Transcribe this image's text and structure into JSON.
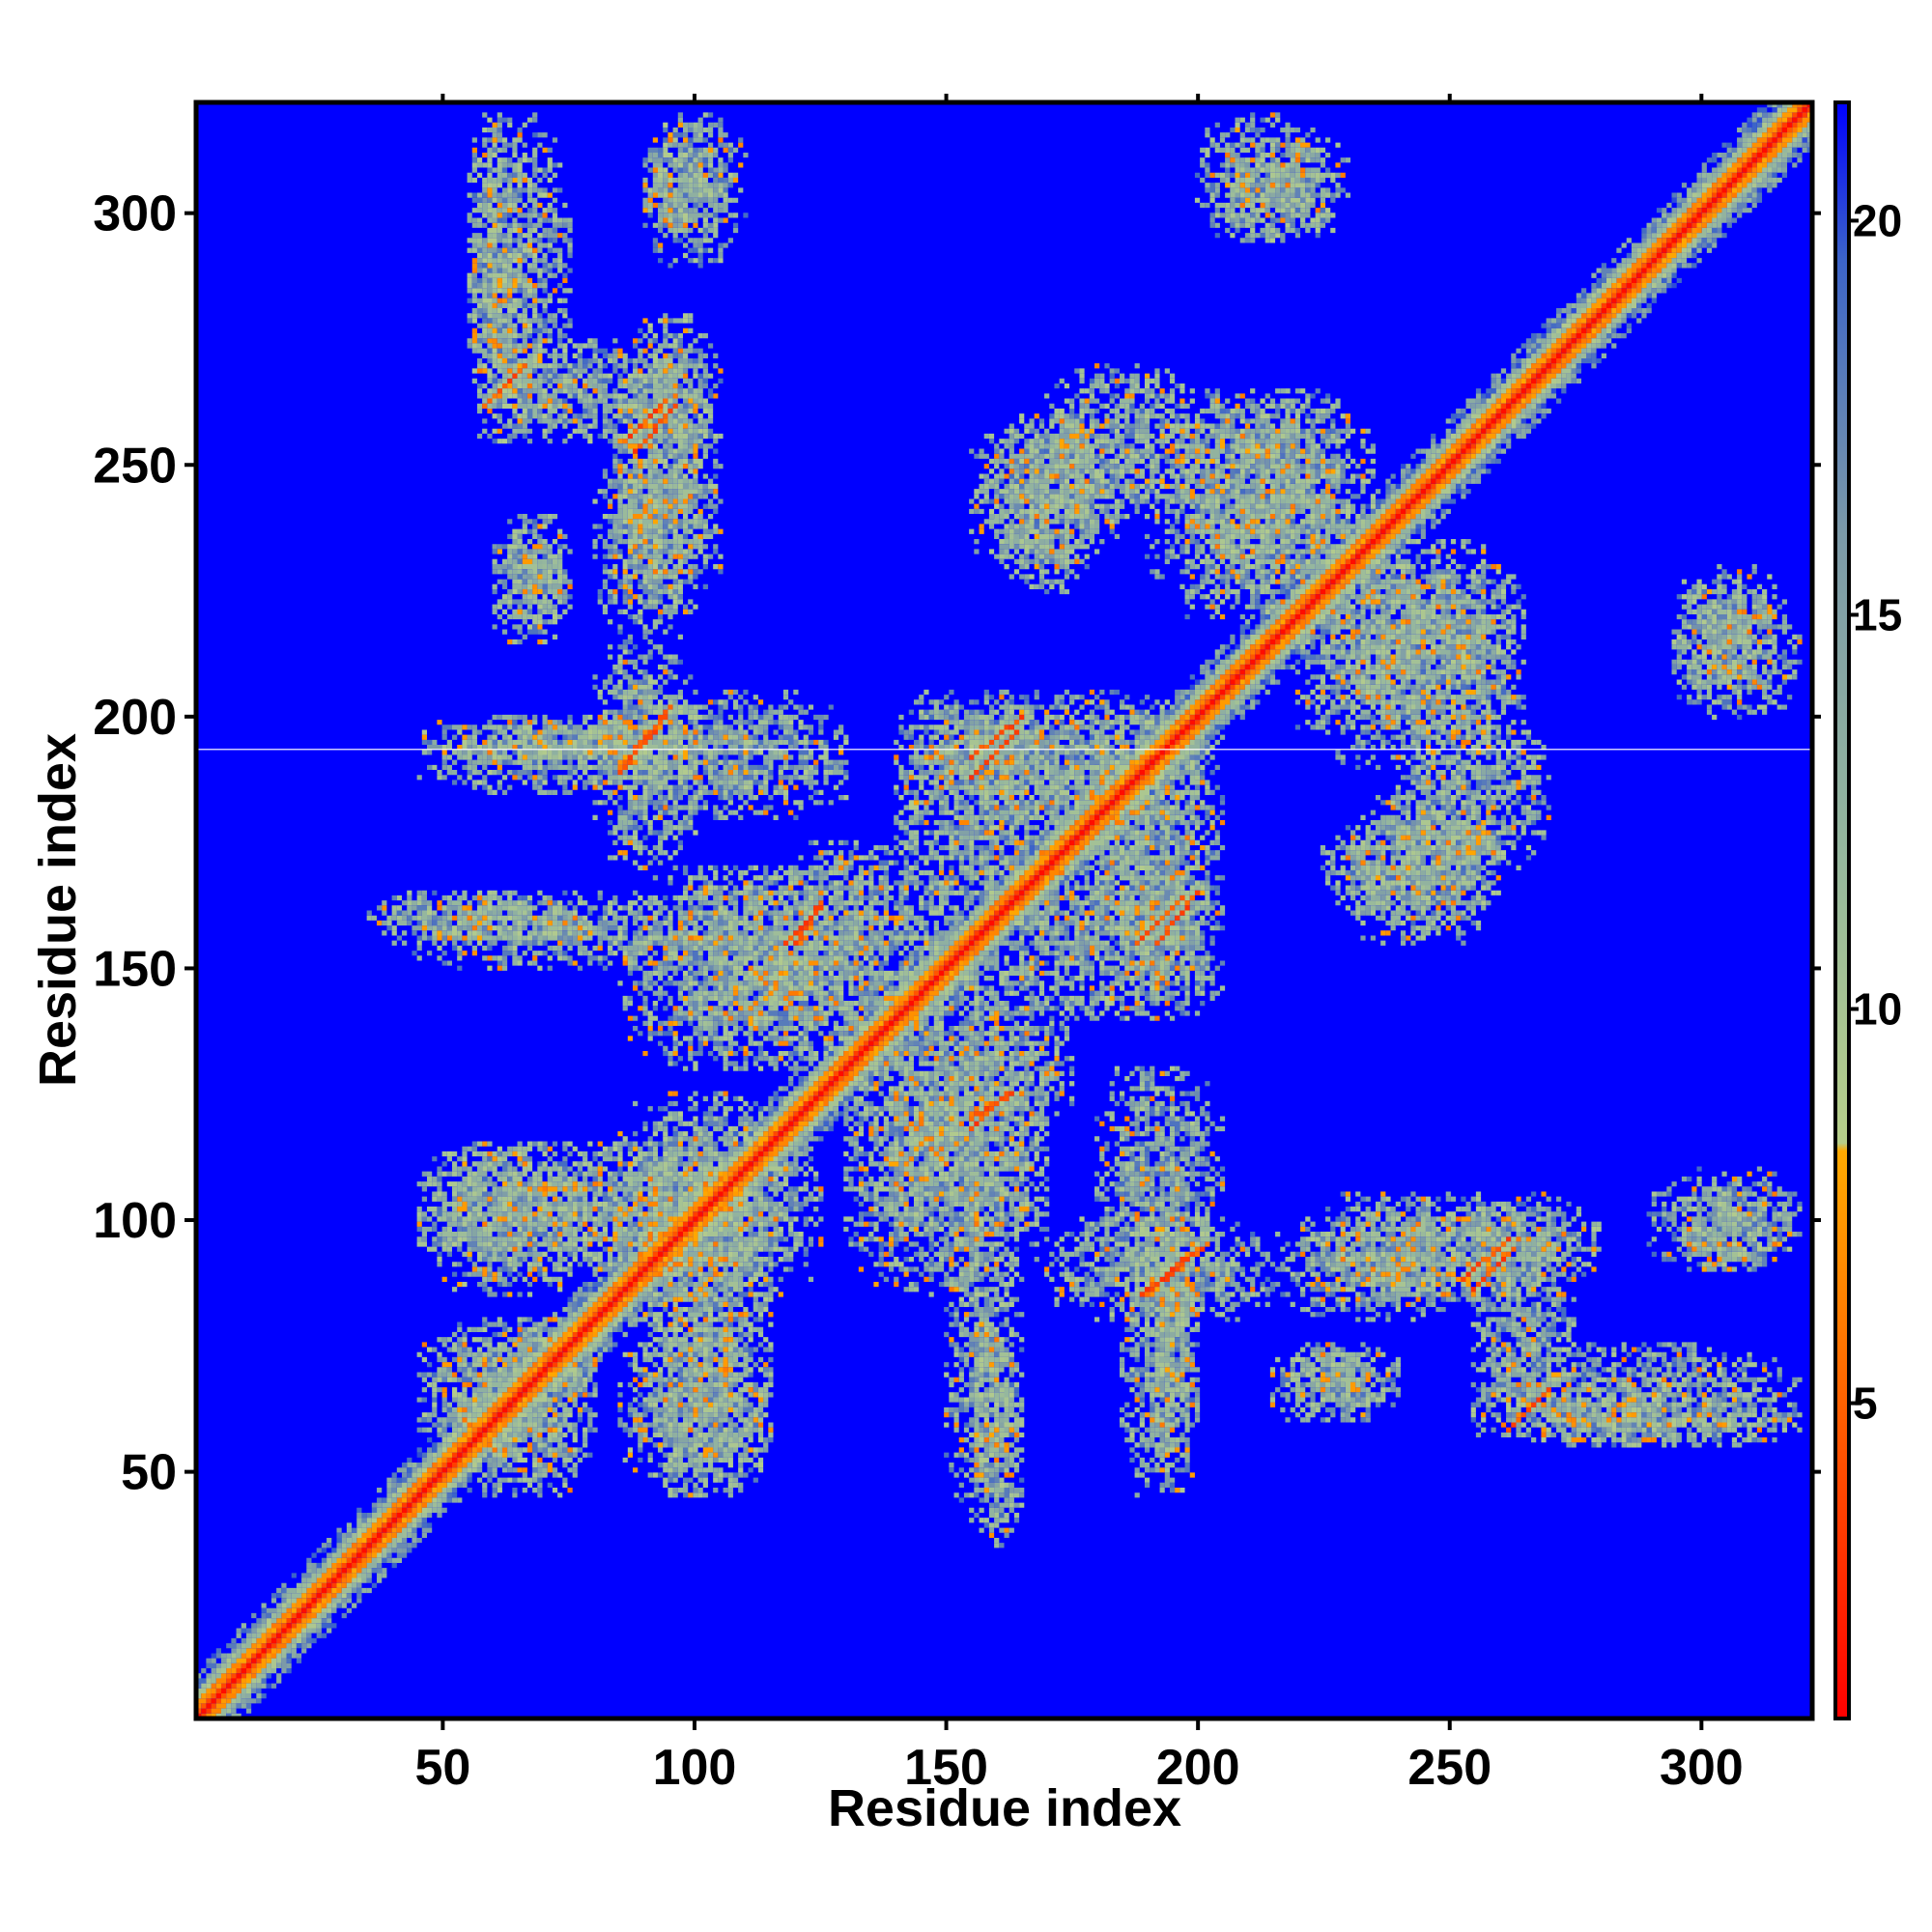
{
  "chart_data": {
    "type": "heatmap",
    "title": "",
    "xlabel": "Residue index",
    "ylabel": "Residue index",
    "xlim": [
      1,
      322
    ],
    "ylim": [
      1,
      322
    ],
    "x_ticks": [
      50,
      100,
      150,
      200,
      250,
      300
    ],
    "y_ticks": [
      50,
      100,
      150,
      200,
      250,
      300
    ],
    "colorbar": {
      "ticks": [
        5,
        10,
        15,
        20
      ],
      "range": [
        1,
        21.5
      ],
      "stops": [
        {
          "value": 1.0,
          "color": "#ff0000"
        },
        {
          "value": 6.0,
          "color": "#ff7a00"
        },
        {
          "value": 8.2,
          "color": "#ffaa00"
        },
        {
          "value": 8.3,
          "color": "#b7cf8a"
        },
        {
          "value": 12.0,
          "color": "#95b79e"
        },
        {
          "value": 16.0,
          "color": "#7c9aa8"
        },
        {
          "value": 19.5,
          "color": "#3c64c8"
        },
        {
          "value": 21.5,
          "color": "#0000ff"
        }
      ]
    },
    "background_value": 21.5,
    "contact_regions": [
      {
        "x": [
          1,
          322
        ],
        "y": [
          1,
          322
        ],
        "kind": "diagonal"
      },
      {
        "x": [
          55,
          65
        ],
        "y": [
          255,
          320
        ]
      },
      {
        "x": [
          90,
          110
        ],
        "y": [
          290,
          320
        ]
      },
      {
        "x": [
          205,
          230
        ],
        "y": [
          295,
          315
        ]
      },
      {
        "x": [
          60,
          95
        ],
        "y": [
          255,
          275
        ]
      },
      {
        "x": [
          85,
          105
        ],
        "y": [
          220,
          270
        ]
      },
      {
        "x": [
          60,
          75
        ],
        "y": [
          215,
          235
        ]
      },
      {
        "x": [
          155,
          185
        ],
        "y": [
          230,
          260
        ]
      },
      {
        "x": [
          190,
          230
        ],
        "y": [
          220,
          265
        ]
      },
      {
        "x": [
          225,
          265
        ],
        "y": [
          195,
          235
        ]
      },
      {
        "x": [
          240,
          270
        ],
        "y": [
          170,
          200
        ]
      },
      {
        "x": [
          295,
          320
        ],
        "y": [
          200,
          225
        ]
      },
      {
        "x": [
          45,
          100
        ],
        "y": [
          185,
          200
        ]
      },
      {
        "x": [
          85,
          130
        ],
        "y": [
          180,
          205
        ]
      },
      {
        "x": [
          140,
          170
        ],
        "y": [
          160,
          200
        ]
      },
      {
        "x": [
          175,
          205
        ],
        "y": [
          150,
          200
        ]
      },
      {
        "x": [
          225,
          260
        ],
        "y": [
          160,
          180
        ]
      },
      {
        "x": [
          40,
          100
        ],
        "y": [
          150,
          165
        ]
      },
      {
        "x": [
          100,
          135
        ],
        "y": [
          130,
          170
        ]
      },
      {
        "x": [
          135,
          175
        ],
        "y": [
          115,
          150
        ]
      },
      {
        "x": [
          185,
          205
        ],
        "y": [
          140,
          170
        ]
      },
      {
        "x": [
          45,
          95
        ],
        "y": [
          90,
          115
        ]
      },
      {
        "x": [
          85,
          120
        ],
        "y": [
          80,
          125
        ]
      },
      {
        "x": [
          130,
          170
        ],
        "y": [
          85,
          125
        ]
      },
      {
        "x": [
          170,
          215
        ],
        "y": [
          80,
          100
        ]
      },
      {
        "x": [
          215,
          260
        ],
        "y": [
          80,
          100
        ]
      },
      {
        "x": [
          250,
          280
        ],
        "y": [
          85,
          105
        ]
      },
      {
        "x": [
          295,
          315
        ],
        "y": [
          90,
          100
        ]
      },
      {
        "x": [
          45,
          80
        ],
        "y": [
          50,
          80
        ]
      },
      {
        "x": [
          85,
          115
        ],
        "y": [
          45,
          80
        ]
      },
      {
        "x": [
          155,
          165
        ],
        "y": [
          35,
          75
        ]
      },
      {
        "x": [
          190,
          200
        ],
        "y": [
          50,
          90
        ]
      },
      {
        "x": [
          220,
          240
        ],
        "y": [
          60,
          75
        ]
      },
      {
        "x": [
          255,
          320
        ],
        "y": [
          55,
          75
        ]
      }
    ],
    "strong_contacts": [
      {
        "from": [
          85,
          190
        ],
        "to": [
          95,
          202
        ]
      },
      {
        "from": [
          155,
          192
        ],
        "to": [
          165,
          200
        ]
      },
      {
        "from": [
          118,
          155
        ],
        "to": [
          125,
          162
        ]
      },
      {
        "from": [
          155,
          120
        ],
        "to": [
          163,
          125
        ]
      },
      {
        "from": [
          189,
          85
        ],
        "to": [
          200,
          94
        ]
      },
      {
        "from": [
          188,
          155
        ],
        "to": [
          197,
          164
        ]
      },
      {
        "from": [
          253,
          88
        ],
        "to": [
          262,
          96
        ]
      },
      {
        "from": [
          86,
          255
        ],
        "to": [
          94,
          263
        ]
      },
      {
        "from": [
          58,
          262
        ],
        "to": [
          66,
          270
        ]
      }
    ]
  }
}
